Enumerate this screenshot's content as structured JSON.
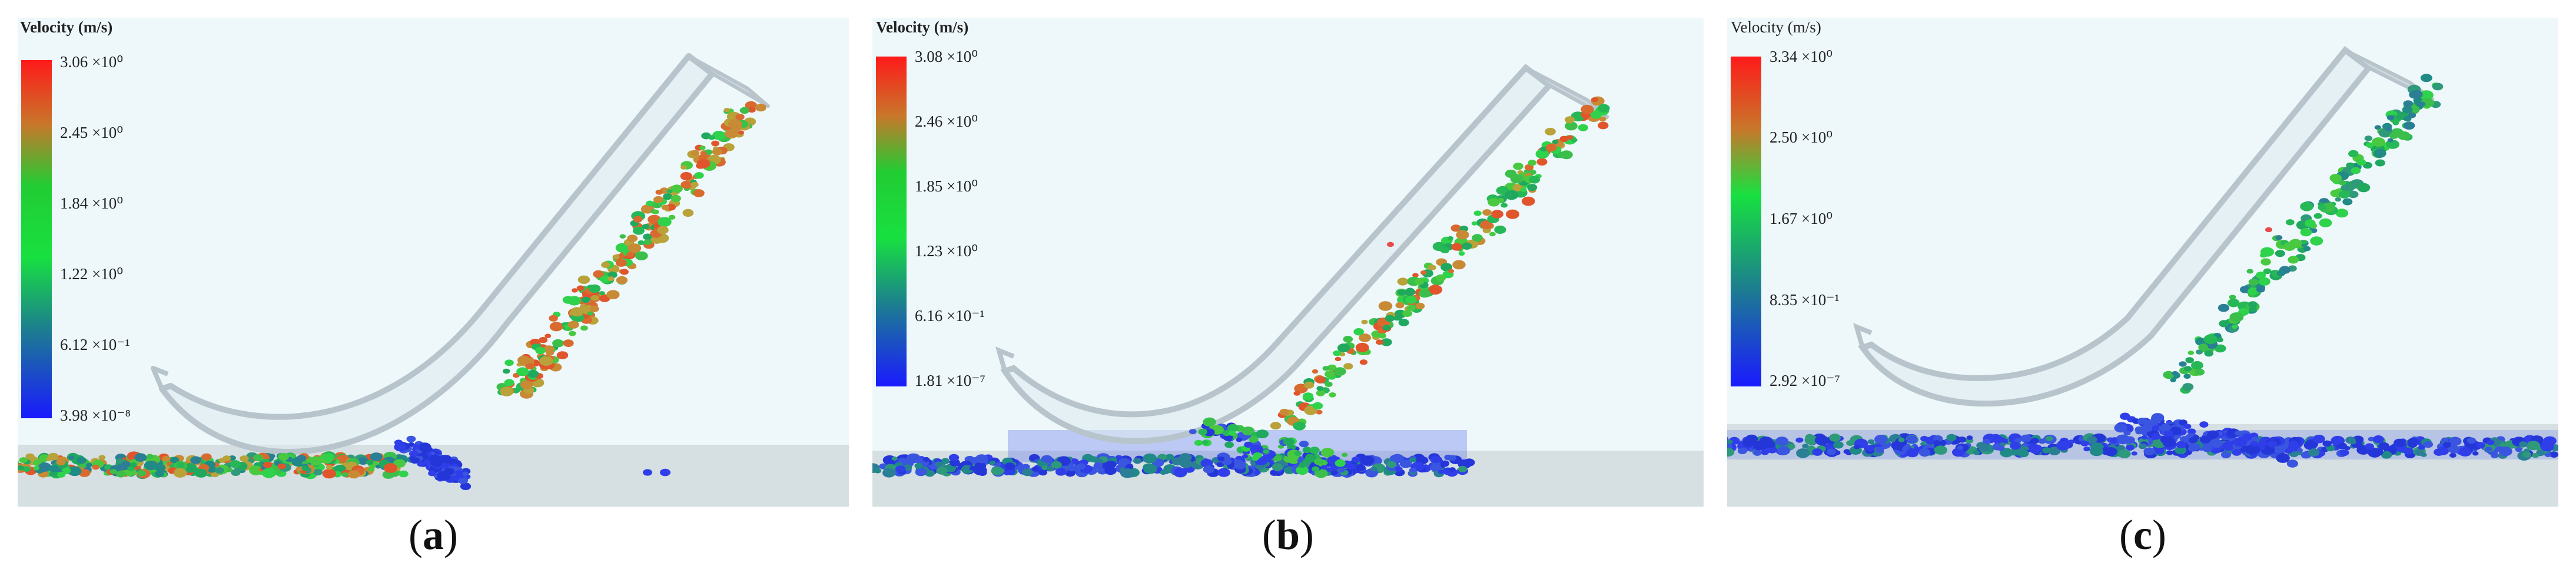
{
  "panels": [
    {
      "id": "a",
      "caption_open": "(",
      "caption_letter": "a",
      "caption_close": ")",
      "legend_title": "Velocity (m/s)",
      "ticks": [
        "3.06 ×10⁰",
        "2.45 ×10⁰",
        "1.84 ×10⁰",
        "1.22 ×10⁰",
        "6.12 ×10⁻¹",
        "3.98 ×10⁻⁸"
      ]
    },
    {
      "id": "b",
      "caption_open": "(",
      "caption_letter": "b",
      "caption_close": ")",
      "legend_title": "Velocity (m/s)",
      "ticks": [
        "3.08 ×10⁰",
        "2.46 ×10⁰",
        "1.85 ×10⁰",
        "1.23 ×10⁰",
        "6.16 ×10⁻¹",
        "1.81 ×10⁻⁷"
      ]
    },
    {
      "id": "c",
      "caption_open": "(",
      "caption_letter": "c",
      "caption_close": ")",
      "legend_title": "Velocity (m/s)",
      "ticks": [
        "3.34 ×10⁰",
        "2.50 ×10⁰",
        "1.67 ×10⁰",
        "8.35 ×10⁻¹",
        "2.92 ×10⁻⁷"
      ]
    }
  ],
  "colors": {
    "background": "#eef8fb",
    "floor": "#d6dfe2",
    "chute": "#bfcbd2",
    "high": "#e84a2a",
    "mid": "#2fd24b",
    "low": "#2f3ee8"
  }
}
